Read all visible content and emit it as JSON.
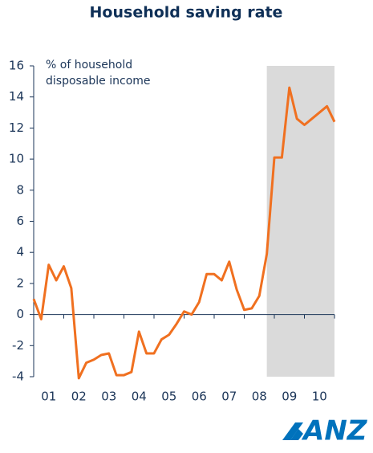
{
  "chart_data": {
    "type": "line",
    "title": "Household saving rate",
    "y_label": [
      "% of household",
      "disposable income"
    ],
    "categories": [
      null,
      null,
      "01",
      null,
      null,
      null,
      "02",
      null,
      null,
      null,
      "03",
      null,
      null,
      null,
      "04",
      null,
      null,
      null,
      "05",
      null,
      null,
      null,
      "06",
      null,
      null,
      null,
      "07",
      null,
      null,
      null,
      "08",
      null,
      null,
      null,
      "09",
      null,
      null,
      null,
      "10",
      null,
      null
    ],
    "values": [
      1.0,
      -0.3,
      3.2,
      2.2,
      3.1,
      1.7,
      -4.1,
      -3.1,
      -2.9,
      -2.6,
      -2.5,
      -3.9,
      -3.9,
      -3.7,
      -1.1,
      -2.5,
      -2.5,
      -1.6,
      -1.3,
      -0.6,
      0.2,
      0.0,
      0.8,
      2.6,
      2.6,
      2.2,
      3.4,
      1.6,
      0.3,
      0.4,
      1.2,
      3.9,
      10.1,
      10.1,
      14.6,
      12.6,
      12.2,
      12.6,
      13.0,
      13.4,
      12.4
    ],
    "color": "#f07020",
    "highlight": {
      "start": 31,
      "end": 40,
      "color": "#dadada"
    },
    "ylim": [
      -4,
      16
    ],
    "yticks": [
      -4,
      -2,
      0,
      2,
      4,
      6,
      8,
      10,
      12,
      14,
      16
    ],
    "grid": false,
    "logo": "ANZ"
  }
}
